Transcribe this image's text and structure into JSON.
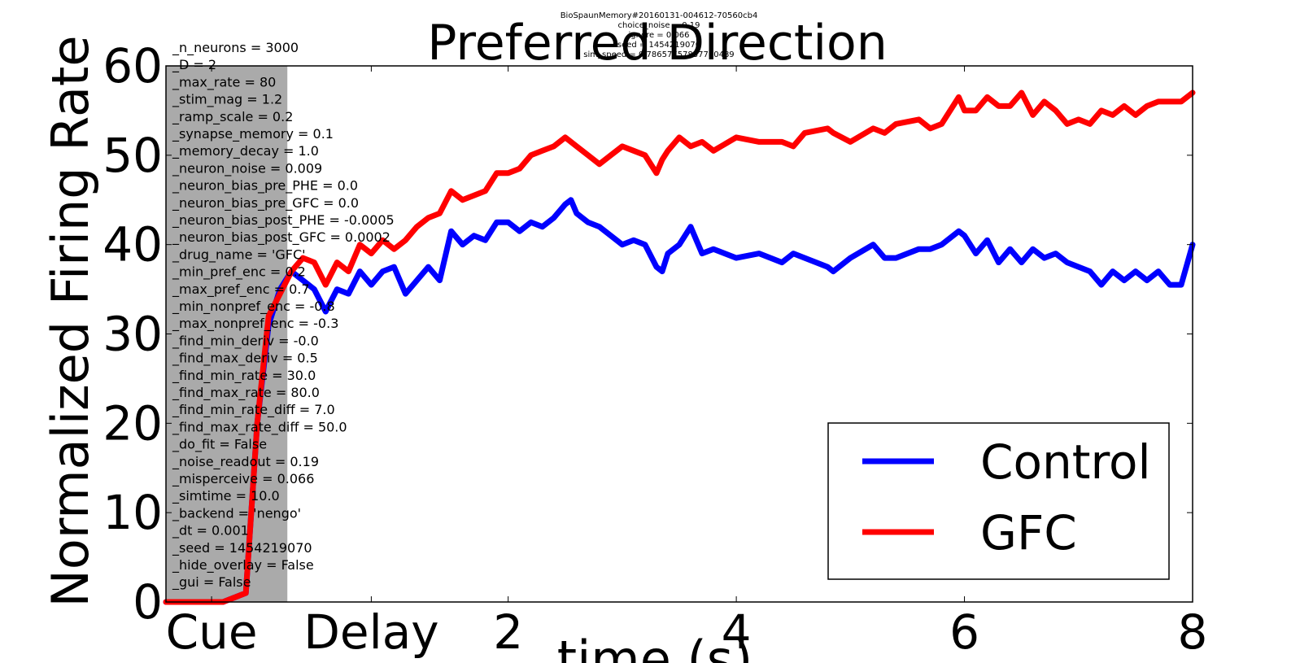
{
  "chart_data": {
    "type": "line",
    "title": "Preferred Direction",
    "overlay_text": [
      "BioSpaunMemory#20160131-004612-70560cb4",
      "choice_noise = 0.19",
      "ignore = 0.066",
      "seed = 1454219070",
      "sim_speed = 0.78657757837780489"
    ],
    "xlabel": "time (s)",
    "ylabel": "Normalized Firing Rate",
    "xlim": [
      -1.0,
      8.0
    ],
    "ylim": [
      0,
      60
    ],
    "xticks": [
      {
        "value": -0.6,
        "label": "Cue"
      },
      {
        "value": 0.8,
        "label": "Delay"
      },
      {
        "value": 2,
        "label": "2"
      },
      {
        "value": 4,
        "label": "4"
      },
      {
        "value": 6,
        "label": "6"
      },
      {
        "value": 8,
        "label": "8"
      }
    ],
    "yticks": [
      0,
      10,
      20,
      30,
      40,
      50,
      60
    ],
    "cue_region": [
      -1.0,
      0.0
    ],
    "grid": false,
    "legend": "lower-right",
    "series": [
      {
        "name": "Control",
        "color": "#0000ff",
        "x": [
          -1.0,
          -0.5,
          -0.3,
          -0.2,
          -0.1,
          0.0,
          0.1,
          0.2,
          0.3,
          0.4,
          0.5,
          0.6,
          0.7,
          0.8,
          0.9,
          1.0,
          1.1,
          1.2,
          1.3,
          1.4,
          1.5,
          1.6,
          1.7,
          1.8,
          1.9,
          2.0,
          2.1,
          2.2,
          2.3,
          2.4,
          2.5,
          2.55,
          2.6,
          2.7,
          2.8,
          2.9,
          3.0,
          3.1,
          3.2,
          3.3,
          3.35,
          3.4,
          3.5,
          3.6,
          3.7,
          3.8,
          4.0,
          4.2,
          4.4,
          4.5,
          4.6,
          4.8,
          4.85,
          5.0,
          5.2,
          5.3,
          5.4,
          5.6,
          5.7,
          5.8,
          5.95,
          6.0,
          6.1,
          6.2,
          6.3,
          6.4,
          6.5,
          6.6,
          6.7,
          6.8,
          6.9,
          7.0,
          7.1,
          7.2,
          7.3,
          7.4,
          7.5,
          7.6,
          7.7,
          7.8,
          7.9,
          8.0
        ],
        "y": [
          0,
          0,
          1,
          20,
          31,
          35,
          37,
          36,
          35,
          32.5,
          35,
          34.5,
          37,
          35.5,
          37,
          37.5,
          34.5,
          36,
          37.5,
          36,
          41.5,
          40,
          41,
          40.5,
          42.5,
          42.5,
          41.5,
          42.5,
          42,
          43,
          44.5,
          45,
          43.5,
          42.5,
          42,
          41,
          40,
          40.5,
          40,
          37.5,
          37,
          39,
          40,
          42,
          39,
          39.5,
          38.5,
          39,
          38,
          39,
          38.5,
          37.5,
          37,
          38.5,
          40,
          38.5,
          38.5,
          39.5,
          39.5,
          40,
          41.5,
          41,
          39,
          40.5,
          38,
          39.5,
          38,
          39.5,
          38.5,
          39,
          38,
          37.5,
          37,
          35.5,
          37,
          36,
          37,
          36,
          37,
          35.5,
          35.5,
          40
        ]
      },
      {
        "name": "GFC",
        "color": "#ff0000",
        "x": [
          -1.0,
          -0.5,
          -0.3,
          -0.2,
          -0.1,
          0.0,
          0.1,
          0.2,
          0.3,
          0.4,
          0.5,
          0.6,
          0.7,
          0.8,
          0.9,
          1.0,
          1.1,
          1.2,
          1.3,
          1.4,
          1.5,
          1.6,
          1.7,
          1.8,
          1.9,
          2.0,
          2.1,
          2.2,
          2.3,
          2.4,
          2.5,
          2.55,
          2.6,
          2.7,
          2.8,
          2.9,
          3.0,
          3.1,
          3.2,
          3.3,
          3.35,
          3.4,
          3.5,
          3.6,
          3.7,
          3.8,
          4.0,
          4.2,
          4.4,
          4.5,
          4.6,
          4.8,
          4.85,
          5.0,
          5.2,
          5.3,
          5.4,
          5.6,
          5.7,
          5.8,
          5.95,
          6.0,
          6.1,
          6.2,
          6.3,
          6.4,
          6.5,
          6.6,
          6.7,
          6.8,
          6.9,
          7.0,
          7.1,
          7.2,
          7.3,
          7.4,
          7.5,
          7.6,
          7.7,
          7.8,
          7.9,
          8.0
        ],
        "y": [
          0,
          0,
          1,
          20,
          32,
          34.5,
          37,
          38.5,
          38,
          35.5,
          38,
          37,
          40,
          39,
          40.5,
          39.5,
          40.5,
          42,
          43,
          43.5,
          46,
          45,
          45.5,
          46,
          48,
          48,
          48.5,
          50,
          50.5,
          51,
          52,
          51.5,
          51,
          50,
          49,
          50,
          51,
          50.5,
          50,
          48,
          49.5,
          50.5,
          52,
          51,
          51.5,
          50.5,
          52,
          51.5,
          51.5,
          51,
          52.5,
          53,
          52.5,
          51.5,
          53,
          52.5,
          53.5,
          54,
          53,
          53.5,
          56.5,
          55,
          55,
          56.5,
          55.5,
          55.5,
          57,
          54.5,
          56,
          55,
          53.5,
          54,
          53.5,
          55,
          54.5,
          55.5,
          54.5,
          55.5,
          56,
          56,
          56,
          57
        ]
      }
    ],
    "parameters": [
      "_n_neurons = 3000",
      "_D = 2",
      "_max_rate = 80",
      "_stim_mag = 1.2",
      "_ramp_scale = 0.2",
      "_synapse_memory = 0.1",
      "_memory_decay = 1.0",
      "_neuron_noise = 0.009",
      "_neuron_bias_pre_PHE = 0.0",
      "_neuron_bias_pre_GFC = 0.0",
      "_neuron_bias_post_PHE = -0.0005",
      "_neuron_bias_post_GFC = 0.0002",
      "_drug_name = 'GFC'",
      "_min_pref_enc = 0.2",
      "_max_pref_enc = 0.7",
      "_min_nonpref_enc = -0.8",
      "_max_nonpref_enc = -0.3",
      "_find_min_deriv = -0.0",
      "_find_max_deriv = 0.5",
      "_find_min_rate = 30.0",
      "_find_max_rate = 80.0",
      "_find_min_rate_diff = 7.0",
      "_find_max_rate_diff = 50.0",
      "_do_fit = False",
      "_noise_readout = 0.19",
      "_misperceive = 0.066",
      "_simtime = 10.0",
      "_backend = 'nengo'",
      "_dt = 0.001",
      "_seed = 1454219070",
      "_hide_overlay = False",
      "_gui = False"
    ]
  }
}
